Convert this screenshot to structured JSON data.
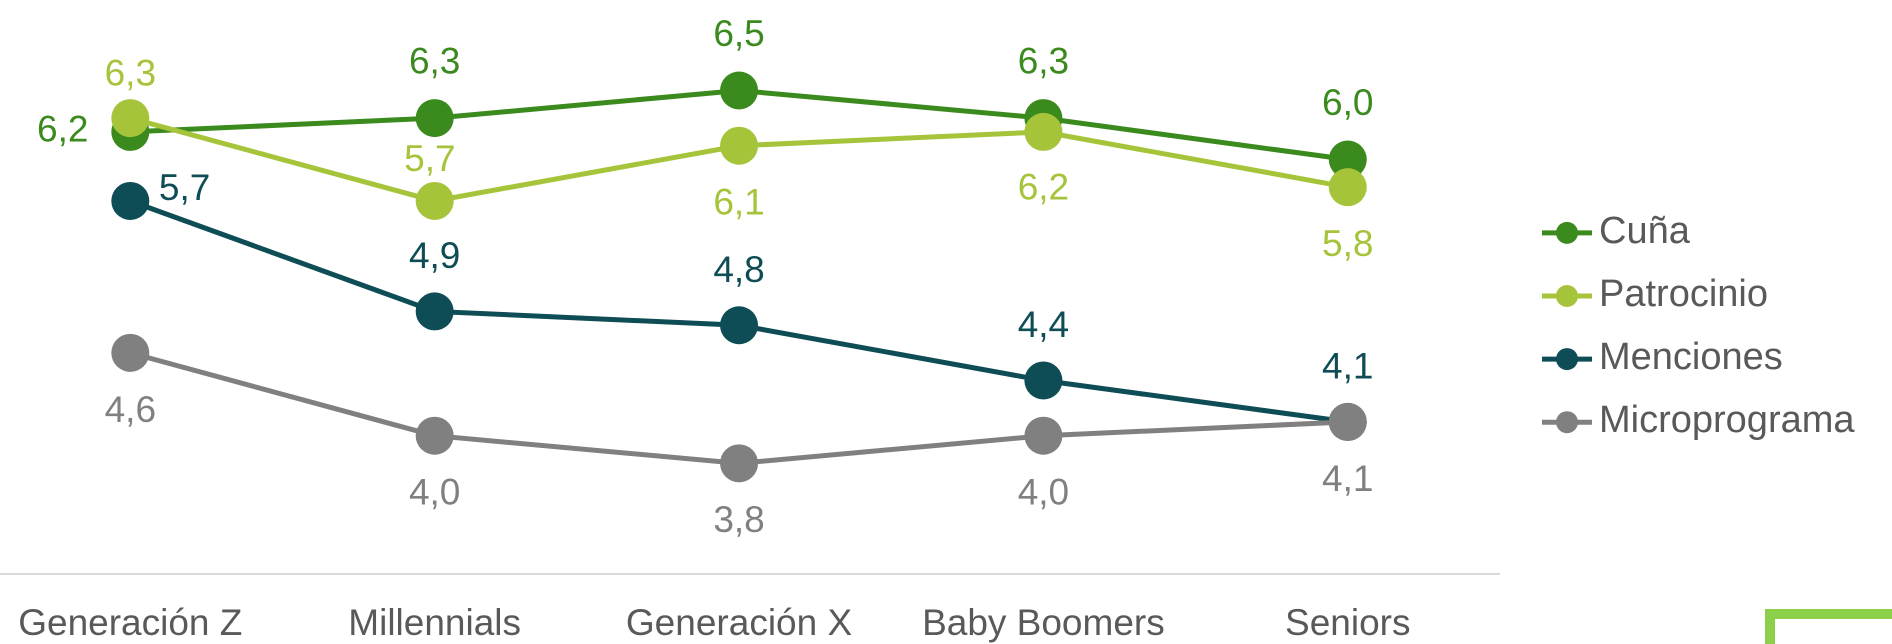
{
  "chart_data": {
    "type": "line",
    "categories": [
      "Generación Z",
      "Millennials",
      "Generación X",
      "Baby Boomers",
      "Seniors"
    ],
    "series": [
      {
        "name": "Cuña",
        "color": "#3a8a1e",
        "values": [
          6.2,
          6.3,
          6.5,
          6.3,
          6.0
        ],
        "value_labels": [
          "6,2",
          "6,3",
          "6,5",
          "6,3",
          "6,0"
        ]
      },
      {
        "name": "Patrocinio",
        "color": "#a5c43a",
        "values": [
          6.3,
          5.7,
          6.1,
          6.2,
          5.8
        ],
        "value_labels": [
          "6,3",
          "5,7",
          "6,1",
          "6,2",
          "5,8"
        ]
      },
      {
        "name": "Menciones",
        "color": "#0e4d55",
        "values": [
          5.7,
          4.9,
          4.8,
          4.4,
          4.1
        ],
        "value_labels": [
          "5,7",
          "4,9",
          "4,8",
          "4,4",
          "4,1"
        ]
      },
      {
        "name": "Microprograma",
        "color": "#808080",
        "values": [
          4.6,
          4.0,
          3.8,
          4.0,
          4.1
        ],
        "value_labels": [
          "4,6",
          "4,0",
          "3,8",
          "4,0",
          "4,1"
        ]
      }
    ],
    "legend": "right"
  }
}
